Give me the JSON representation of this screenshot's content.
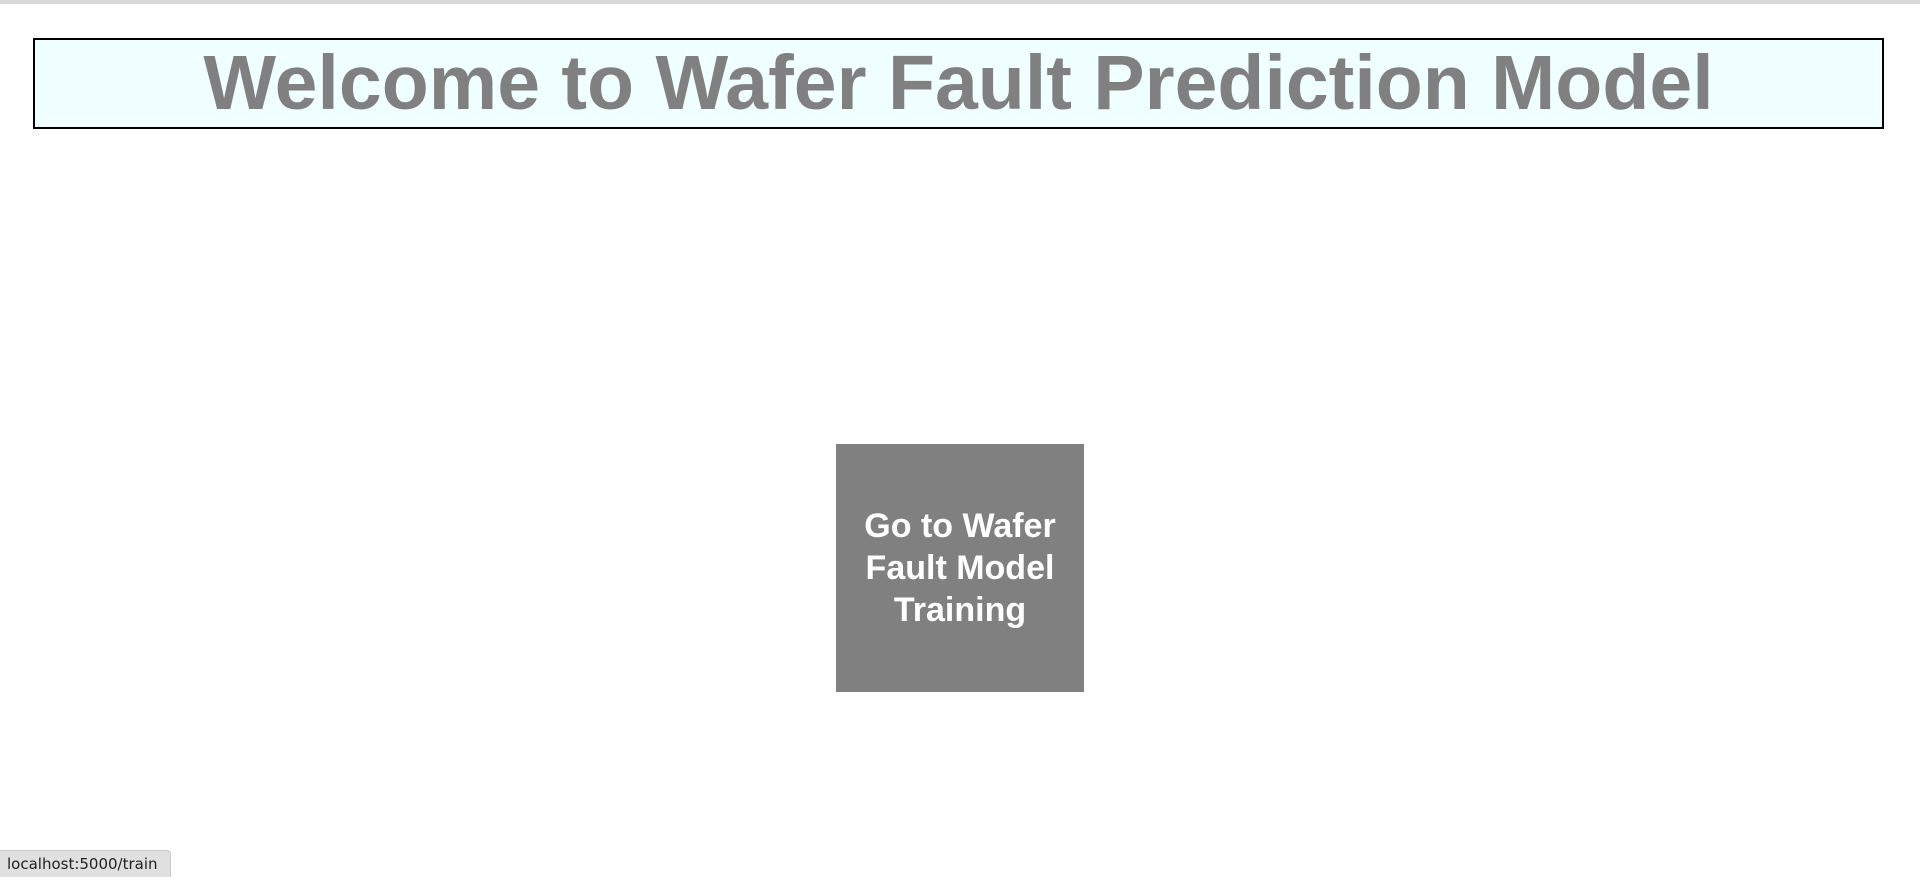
{
  "header": {
    "title": "Welcome to Wafer Fault Prediction Model"
  },
  "main": {
    "train_button_label": "Go to Wafer Fault Model Training"
  },
  "status_bar": {
    "url": "localhost:5000/train"
  },
  "colors": {
    "title_text": "#808080",
    "header_background": "#f0ffff",
    "button_background": "#808080",
    "button_text": "#ffffff"
  }
}
